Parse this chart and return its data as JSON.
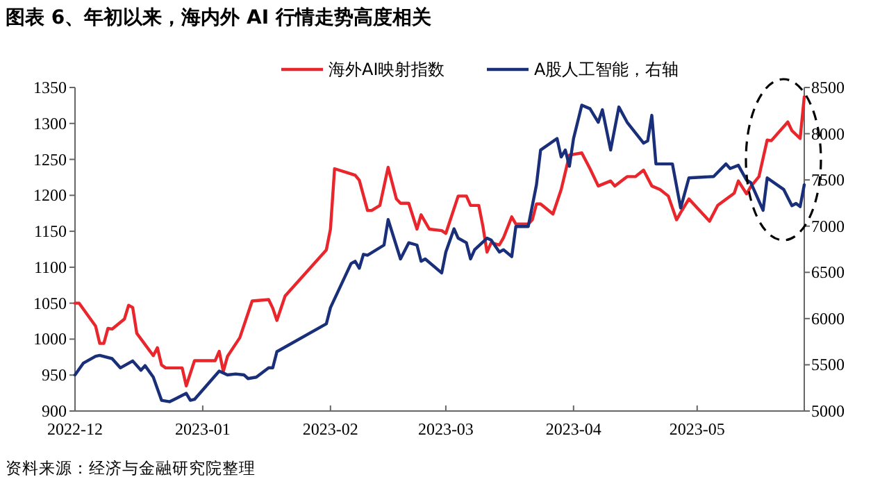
{
  "chart_data": {
    "type": "line",
    "title": "图表 6、年初以来，海内外 AI 行情走势高度相关",
    "annotations": [
      "资料来源：经济与金融研究院整理"
    ],
    "legend": "top",
    "xlim": [
      "2022-12-01",
      "2023-05-27"
    ],
    "xticks": [
      {
        "value": "2022-12-01",
        "label": "2022-12"
      },
      {
        "value": "2023-01-01",
        "label": "2023-01"
      },
      {
        "value": "2023-02-01",
        "label": "2023-02"
      },
      {
        "value": "2023-03-01",
        "label": "2023-03"
      },
      {
        "value": "2023-04-01",
        "label": "2023-04"
      },
      {
        "value": "2023-05-01",
        "label": "2023-05"
      }
    ],
    "ylim": [
      900,
      1350
    ],
    "yticks": [
      900,
      950,
      1000,
      1050,
      1100,
      1150,
      1200,
      1250,
      1300,
      1350
    ],
    "y2lim": [
      5000,
      8500
    ],
    "y2ticks": [
      5000,
      5500,
      6000,
      6500,
      7000,
      7500,
      8000,
      8500
    ],
    "series": [
      {
        "name": "海外AI映射指数",
        "color": "#e8262c",
        "x": [
          "2022-12-01",
          "2022-12-02",
          "2022-12-06",
          "2022-12-07",
          "2022-12-08",
          "2022-12-09",
          "2022-12-10",
          "2022-12-13",
          "2022-12-14",
          "2022-12-15",
          "2022-12-16",
          "2022-12-20",
          "2022-12-21",
          "2022-12-22",
          "2022-12-23",
          "2022-12-27",
          "2022-12-28",
          "2022-12-30",
          "2023-01-04",
          "2023-01-05",
          "2023-01-06",
          "2023-01-07",
          "2023-01-10",
          "2023-01-13",
          "2023-01-17",
          "2023-01-18",
          "2023-01-19",
          "2023-01-21",
          "2023-01-31",
          "2023-02-01",
          "2023-02-02",
          "2023-02-07",
          "2023-02-08",
          "2023-02-10",
          "2023-02-11",
          "2023-02-13",
          "2023-02-15",
          "2023-02-17",
          "2023-02-18",
          "2023-02-20",
          "2023-02-22",
          "2023-02-23",
          "2023-02-25",
          "2023-02-28",
          "2023-03-01",
          "2023-03-04",
          "2023-03-06",
          "2023-03-07",
          "2023-03-09",
          "2023-03-10",
          "2023-03-11",
          "2023-03-12",
          "2023-03-14",
          "2023-03-15",
          "2023-03-17",
          "2023-03-18",
          "2023-03-21",
          "2023-03-22",
          "2023-03-23",
          "2023-03-24",
          "2023-03-27",
          "2023-03-29",
          "2023-03-31",
          "2023-04-03",
          "2023-04-05",
          "2023-04-07",
          "2023-04-10",
          "2023-04-11",
          "2023-04-14",
          "2023-04-16",
          "2023-04-18",
          "2023-04-20",
          "2023-04-22",
          "2023-04-24",
          "2023-04-26",
          "2023-04-27",
          "2023-04-29",
          "2023-05-04",
          "2023-05-06",
          "2023-05-10",
          "2023-05-11",
          "2023-05-13",
          "2023-05-14",
          "2023-05-16",
          "2023-05-18",
          "2023-05-19",
          "2023-05-23",
          "2023-05-24",
          "2023-05-26",
          "2023-05-27"
        ],
        "values": [
          1050,
          1050,
          1018,
          994,
          994,
          1015,
          1014,
          1028,
          1047,
          1044,
          1008,
          977,
          988,
          964,
          960,
          960,
          935,
          970,
          970,
          983,
          955,
          976,
          1002,
          1053,
          1055,
          1043,
          1026,
          1060,
          1124,
          1153,
          1237,
          1228,
          1221,
          1179,
          1179,
          1186,
          1239,
          1195,
          1189,
          1189,
          1153,
          1173,
          1153,
          1151,
          1147,
          1199,
          1199,
          1186,
          1186,
          1157,
          1121,
          1134,
          1131,
          1141,
          1170,
          1160,
          1160,
          1166,
          1188,
          1188,
          1174,
          1208,
          1256,
          1259,
          1237,
          1213,
          1220,
          1213,
          1226,
          1226,
          1235,
          1213,
          1208,
          1199,
          1166,
          1176,
          1195,
          1164,
          1186,
          1203,
          1220,
          1202,
          1212,
          1226,
          1277,
          1276,
          1302,
          1290,
          1279,
          1337
        ]
      },
      {
        "name": "A股人工智能，右轴",
        "color": "#1a2f7a",
        "axis": "y2",
        "x": [
          "2022-12-01",
          "2022-12-03",
          "2022-12-06",
          "2022-12-07",
          "2022-12-10",
          "2022-12-12",
          "2022-12-15",
          "2022-12-17",
          "2022-12-18",
          "2022-12-20",
          "2022-12-22",
          "2022-12-24",
          "2022-12-28",
          "2022-12-29",
          "2022-12-30",
          "2023-01-05",
          "2023-01-07",
          "2023-01-09",
          "2023-01-11",
          "2023-01-12",
          "2023-01-14",
          "2023-01-17",
          "2023-01-18",
          "2023-01-19",
          "2023-01-31",
          "2023-02-01",
          "2023-02-06",
          "2023-02-07",
          "2023-02-08",
          "2023-02-09",
          "2023-02-10",
          "2023-02-14",
          "2023-02-15",
          "2023-02-18",
          "2023-02-20",
          "2023-02-22",
          "2023-02-23",
          "2023-02-24",
          "2023-02-28",
          "2023-03-01",
          "2023-03-03",
          "2023-03-04",
          "2023-03-06",
          "2023-03-07",
          "2023-03-08",
          "2023-03-11",
          "2023-03-12",
          "2023-03-14",
          "2023-03-15",
          "2023-03-17",
          "2023-03-18",
          "2023-03-21",
          "2023-03-23",
          "2023-03-24",
          "2023-03-28",
          "2023-03-29",
          "2023-03-30",
          "2023-03-31",
          "2023-04-01",
          "2023-04-03",
          "2023-04-05",
          "2023-04-07",
          "2023-04-08",
          "2023-04-10",
          "2023-04-12",
          "2023-04-14",
          "2023-04-18",
          "2023-04-19",
          "2023-04-20",
          "2023-04-21",
          "2023-04-25",
          "2023-04-27",
          "2023-04-29",
          "2023-05-05",
          "2023-05-08",
          "2023-05-09",
          "2023-05-11",
          "2023-05-13",
          "2023-05-14",
          "2023-05-15",
          "2023-05-17",
          "2023-05-18",
          "2023-05-22",
          "2023-05-24",
          "2023-05-25",
          "2023-05-26",
          "2023-05-27"
        ],
        "values": [
          5391,
          5517,
          5592,
          5602,
          5567,
          5467,
          5542,
          5441,
          5491,
          5366,
          5116,
          5101,
          5191,
          5116,
          5126,
          5432,
          5391,
          5401,
          5391,
          5351,
          5366,
          5467,
          5467,
          5642,
          5943,
          6118,
          6595,
          6620,
          6545,
          6695,
          6685,
          6795,
          7071,
          6645,
          6820,
          6795,
          6620,
          6645,
          6494,
          6720,
          6971,
          6870,
          6820,
          6645,
          6745,
          6870,
          6850,
          6720,
          6745,
          6670,
          6996,
          6996,
          7447,
          7823,
          7948,
          7748,
          7823,
          7648,
          7948,
          8309,
          8270,
          8124,
          8259,
          7823,
          8289,
          8124,
          7898,
          7923,
          8199,
          7673,
          7673,
          7196,
          7522,
          7537,
          7673,
          7623,
          7658,
          7497,
          7472,
          7372,
          7171,
          7522,
          7397,
          7221,
          7246,
          7211,
          7447
        ]
      }
    ]
  }
}
